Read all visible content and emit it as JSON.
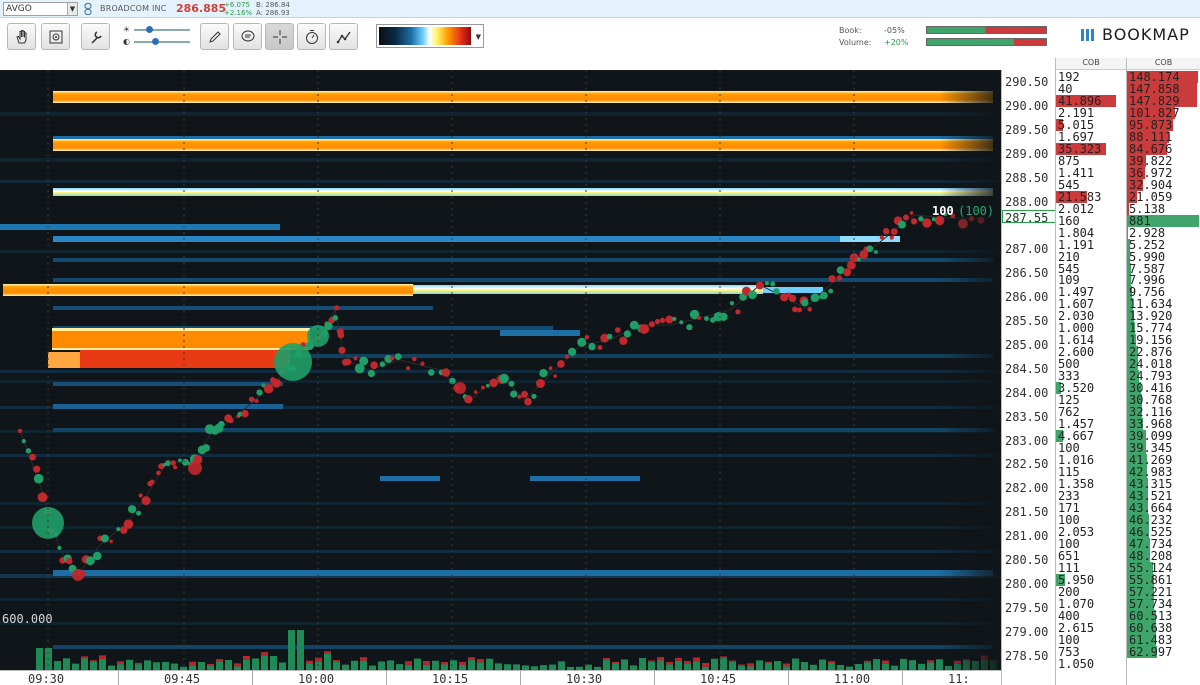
{
  "symbol": {
    "ticker": "AVGO",
    "company": "BROADCOM INC",
    "last": "286.885",
    "change_abs": "+6.075",
    "change_pct": "+2.16%",
    "bid": "B: 286.84",
    "ask": "A: 286.93"
  },
  "toolbar": {
    "book_label": "Book:",
    "book_pct": "-05%",
    "book_bid_fraction": 0.49,
    "volume_label": "Volume:",
    "volume_pct": "+20%",
    "volume_bid_fraction": 0.73,
    "logo": "BOOKMAP",
    "colors": {
      "accent": "#2a86c9",
      "bid": "#3fa56a",
      "ask": "#cc3b3b"
    }
  },
  "chart": {
    "volume_scale_label": "600.000",
    "last_trade_size": "100",
    "last_trade_paren": "(100)",
    "current_price": "287.55"
  },
  "time_axis": [
    "09:30",
    "09:45",
    "10:00",
    "10:15",
    "10:30",
    "10:45",
    "11:00",
    "11:"
  ],
  "price_axis": [
    "290.50",
    "290.00",
    "289.50",
    "289.00",
    "288.50",
    "288.00",
    "287.00",
    "286.50",
    "286.00",
    "285.50",
    "285.00",
    "284.50",
    "284.00",
    "283.50",
    "283.00",
    "282.50",
    "282.00",
    "281.50",
    "281.00",
    "280.50",
    "280.00",
    "279.50",
    "279.00",
    "278.50"
  ],
  "cob": {
    "bid_header": "COB",
    "ask_header": "COB",
    "bid": [
      "192",
      "40",
      "41.896",
      "2.191",
      "5.015",
      "1.697",
      "35.323",
      "875",
      "1.411",
      "545",
      "21.583",
      "2.012",
      "160",
      "1.804",
      "1.191",
      "210",
      "545",
      "109",
      "1.497",
      "1.607",
      "2.030",
      "1.000",
      "1.614",
      "2.600",
      "500",
      "333",
      "3.520",
      "125",
      "762",
      "1.457",
      "4.667",
      "100",
      "1.016",
      "115",
      "1.358",
      "233",
      "171",
      "100",
      "2.053",
      "100",
      "651",
      "111",
      "5.950",
      "200",
      "1.070",
      "400",
      "2.615",
      "100",
      "753",
      "1.050"
    ],
    "ask": [
      "148.174",
      "147.858",
      "147.829",
      "101.827",
      "95.873",
      "88.111",
      "84.676",
      "39.822",
      "36.972",
      "32.904",
      "21.059",
      "5.138",
      "881",
      "2.928",
      "5.252",
      "5.990",
      "7.587",
      "7.996",
      "9.756",
      "11.634",
      "13.920",
      "15.774",
      "19.156",
      "22.876",
      "24.018",
      "24.793",
      "30.416",
      "30.768",
      "32.116",
      "33.968",
      "39.099",
      "39.345",
      "41.269",
      "42.983",
      "43.315",
      "43.521",
      "43.664",
      "46.232",
      "46.525",
      "47.734",
      "48.208",
      "55.124",
      "55.861",
      "57.221",
      "57.734",
      "60.513",
      "60.638",
      "61.483",
      "62.997"
    ]
  }
}
